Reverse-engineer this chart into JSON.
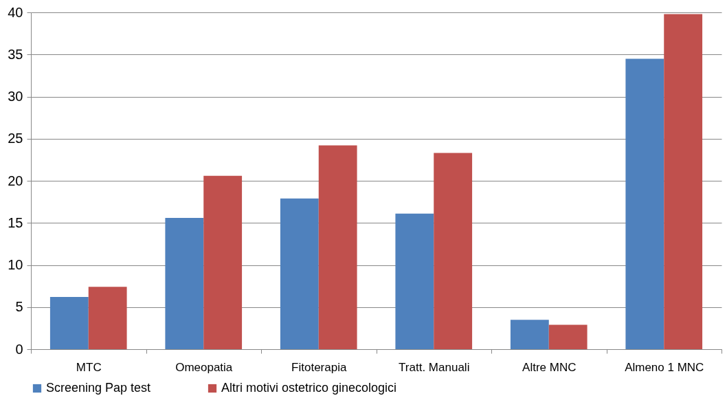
{
  "chart_data": {
    "type": "bar",
    "categories": [
      "MTC",
      "Omeopatia",
      "Fitoterapia",
      "Tratt. Manuali",
      "Altre MNC",
      "Almeno 1 MNC"
    ],
    "series": [
      {
        "name": "Screening Pap test",
        "color": "#4f81bd",
        "values": [
          6.2,
          15.6,
          17.9,
          16.1,
          3.5,
          34.5
        ]
      },
      {
        "name": "Altri motivi ostetrico ginecologici",
        "color": "#c0504d",
        "values": [
          7.4,
          20.6,
          24.2,
          23.3,
          2.9,
          39.8
        ]
      }
    ],
    "ylim": [
      0,
      40
    ],
    "yticks": [
      0,
      5,
      10,
      15,
      20,
      25,
      30,
      35,
      40
    ],
    "grid": "y",
    "legend": "bottom"
  }
}
